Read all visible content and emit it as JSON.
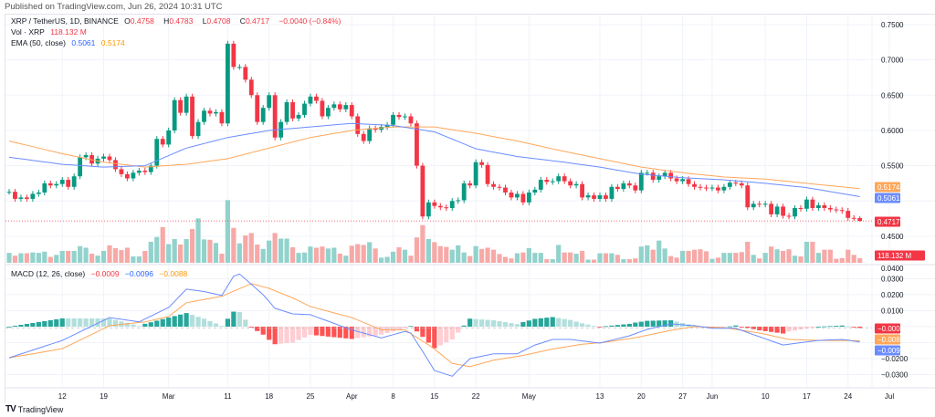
{
  "published": "Published on TradingView.com, Jun 26, 2024 10:31 UTC",
  "legend": {
    "symbol": "XRP / TetherUS, 1D, BINANCE",
    "o_label": "O",
    "o": "0.4758",
    "h_label": "H",
    "h": "0.4783",
    "l_label": "L",
    "l": "0.4708",
    "c_label": "C",
    "c": "0.4717",
    "change": "−0.0040 (−0.84%)",
    "vol_label": "Vol · XRP",
    "vol": "118.132 M",
    "ema_label": "EMA (50, close)",
    "ema1": "0.5061",
    "ema2": "0.5174",
    "macd_label": "MACD (12, 26, close)",
    "macd_hist": "−0.0009",
    "macd_line": "−0.0096",
    "macd_signal": "−0.0088"
  },
  "logo": "TradingView",
  "colors": {
    "up": "#089981",
    "down": "#f23645",
    "vol_up": "#92d2cc",
    "vol_down": "#f7a9a7",
    "ema1": "#6b8cff",
    "ema2": "#ffa75a",
    "hist_up_strong": "#26a69a",
    "hist_up_weak": "#b2dfdb",
    "hist_down_strong": "#ff5252",
    "hist_down_weak": "#ffcdd2"
  },
  "chart_data": [
    {
      "type": "candlestick",
      "title": "XRP / TetherUS, 1D, BINANCE",
      "ylim": [
        0.43,
        0.76
      ],
      "y_ticks": [
        "0.7500",
        "0.7000",
        "0.6500",
        "0.6000",
        "0.5500",
        "0.4500"
      ],
      "x_ticks": [
        [
          "02-12",
          "12"
        ],
        [
          "02-19",
          "19"
        ],
        [
          "03-01",
          "Mar"
        ],
        [
          "03-11",
          "11"
        ],
        [
          "03-18",
          "18"
        ],
        [
          "03-25",
          "25"
        ],
        [
          "04-01",
          "Apr"
        ],
        [
          "04-08",
          "8"
        ],
        [
          "04-15",
          "15"
        ],
        [
          "04-22",
          "22"
        ],
        [
          "05-01",
          "May"
        ],
        [
          "05-13",
          "13"
        ],
        [
          "05-20",
          "20"
        ],
        [
          "05-27",
          "27"
        ],
        [
          "06-01",
          "Jun"
        ],
        [
          "06-10",
          "10"
        ],
        [
          "06-17",
          "17"
        ],
        [
          "06-24",
          "24"
        ],
        [
          "07-01",
          "Jul"
        ]
      ],
      "grid": true,
      "last_candle": {
        "open": 0.4758,
        "high": 0.4783,
        "low": 0.4708,
        "close": 0.4717
      },
      "candles_date_close_volumeM": [
        [
          "02-03",
          0.513,
          250
        ],
        [
          "02-04",
          0.503,
          180
        ],
        [
          "02-05",
          0.505,
          240
        ],
        [
          "02-06",
          0.503,
          240
        ],
        [
          "02-07",
          0.51,
          260
        ],
        [
          "02-08",
          0.512,
          250
        ],
        [
          "02-09",
          0.525,
          280
        ],
        [
          "02-10",
          0.522,
          150
        ],
        [
          "02-11",
          0.524,
          200
        ],
        [
          "02-12",
          0.53,
          300
        ],
        [
          "02-13",
          0.52,
          300
        ],
        [
          "02-14",
          0.535,
          300
        ],
        [
          "02-15",
          0.562,
          420
        ],
        [
          "02-16",
          0.565,
          380
        ],
        [
          "02-17",
          0.553,
          230
        ],
        [
          "02-18",
          0.56,
          180
        ],
        [
          "02-19",
          0.563,
          300
        ],
        [
          "02-20",
          0.558,
          440
        ],
        [
          "02-21",
          0.545,
          370
        ],
        [
          "02-22",
          0.538,
          320
        ],
        [
          "02-23",
          0.532,
          380
        ],
        [
          "02-24",
          0.54,
          160
        ],
        [
          "02-25",
          0.543,
          160
        ],
        [
          "02-26",
          0.541,
          300
        ],
        [
          "02-27",
          0.55,
          530
        ],
        [
          "02-28",
          0.588,
          650
        ],
        [
          "02-29",
          0.58,
          900
        ],
        [
          "03-01",
          0.6,
          470
        ],
        [
          "03-02",
          0.643,
          600
        ],
        [
          "03-03",
          0.625,
          460
        ],
        [
          "03-04",
          0.648,
          600
        ],
        [
          "03-05",
          0.592,
          850
        ],
        [
          "03-06",
          0.612,
          1120
        ],
        [
          "03-07",
          0.628,
          590
        ],
        [
          "03-08",
          0.624,
          580
        ],
        [
          "03-09",
          0.626,
          500
        ],
        [
          "03-10",
          0.61,
          230
        ],
        [
          "03-11",
          0.723,
          1580
        ],
        [
          "03-12",
          0.69,
          880
        ],
        [
          "03-13",
          0.69,
          490
        ],
        [
          "03-14",
          0.672,
          690
        ],
        [
          "03-15",
          0.65,
          750
        ],
        [
          "03-16",
          0.612,
          460
        ],
        [
          "03-17",
          0.632,
          350
        ],
        [
          "03-18",
          0.65,
          560
        ],
        [
          "03-19",
          0.59,
          750
        ],
        [
          "03-20",
          0.612,
          610
        ],
        [
          "03-21",
          0.64,
          610
        ],
        [
          "03-22",
          0.617,
          390
        ],
        [
          "03-23",
          0.622,
          250
        ],
        [
          "03-24",
          0.638,
          260
        ],
        [
          "03-25",
          0.648,
          410
        ],
        [
          "03-26",
          0.642,
          380
        ],
        [
          "03-27",
          0.62,
          410
        ],
        [
          "03-28",
          0.632,
          360
        ],
        [
          "03-29",
          0.637,
          380
        ],
        [
          "03-30",
          0.63,
          230
        ],
        [
          "03-31",
          0.636,
          180
        ],
        [
          "04-01",
          0.62,
          430
        ],
        [
          "04-02",
          0.595,
          470
        ],
        [
          "04-03",
          0.585,
          450
        ],
        [
          "04-04",
          0.603,
          520
        ],
        [
          "04-05",
          0.601,
          360
        ],
        [
          "04-06",
          0.605,
          130
        ],
        [
          "04-07",
          0.608,
          150
        ],
        [
          "04-08",
          0.622,
          280
        ],
        [
          "04-09",
          0.619,
          390
        ],
        [
          "04-10",
          0.62,
          330
        ],
        [
          "04-11",
          0.61,
          180
        ],
        [
          "04-12",
          0.55,
          640
        ],
        [
          "04-13",
          0.478,
          950
        ],
        [
          "04-14",
          0.498,
          600
        ],
        [
          "04-15",
          0.493,
          520
        ],
        [
          "04-16",
          0.491,
          420
        ],
        [
          "04-17",
          0.49,
          400
        ],
        [
          "04-18",
          0.5,
          330
        ],
        [
          "04-19",
          0.501,
          440
        ],
        [
          "04-20",
          0.525,
          260
        ],
        [
          "04-21",
          0.522,
          170
        ],
        [
          "04-22",
          0.555,
          420
        ],
        [
          "04-23",
          0.551,
          350
        ],
        [
          "04-24",
          0.524,
          380
        ],
        [
          "04-25",
          0.52,
          330
        ],
        [
          "04-26",
          0.519,
          220
        ],
        [
          "04-27",
          0.512,
          150
        ],
        [
          "04-28",
          0.505,
          110
        ],
        [
          "04-29",
          0.51,
          240
        ],
        [
          "04-30",
          0.498,
          260
        ],
        [
          "05-01",
          0.512,
          370
        ],
        [
          "05-02",
          0.516,
          250
        ],
        [
          "05-03",
          0.53,
          250
        ],
        [
          "05-04",
          0.527,
          90
        ],
        [
          "05-05",
          0.528,
          90
        ],
        [
          "05-06",
          0.535,
          450
        ],
        [
          "05-07",
          0.528,
          260
        ],
        [
          "05-08",
          0.522,
          260
        ],
        [
          "05-09",
          0.524,
          230
        ],
        [
          "05-10",
          0.505,
          300
        ],
        [
          "05-11",
          0.508,
          80
        ],
        [
          "05-12",
          0.503,
          80
        ],
        [
          "05-13",
          0.508,
          240
        ],
        [
          "05-14",
          0.503,
          240
        ],
        [
          "05-15",
          0.52,
          240
        ],
        [
          "05-16",
          0.517,
          200
        ],
        [
          "05-17",
          0.525,
          90
        ],
        [
          "05-18",
          0.522,
          90
        ],
        [
          "05-19",
          0.515,
          110
        ],
        [
          "05-20",
          0.54,
          410
        ],
        [
          "05-21",
          0.54,
          440
        ],
        [
          "05-22",
          0.53,
          330
        ],
        [
          "05-23",
          0.535,
          560
        ],
        [
          "05-24",
          0.54,
          360
        ],
        [
          "05-25",
          0.532,
          170
        ],
        [
          "05-26",
          0.528,
          130
        ],
        [
          "05-27",
          0.531,
          300
        ],
        [
          "05-28",
          0.524,
          300
        ],
        [
          "05-29",
          0.52,
          330
        ],
        [
          "05-30",
          0.519,
          340
        ],
        [
          "05-31",
          0.518,
          290
        ],
        [
          "06-01",
          0.519,
          100
        ],
        [
          "06-02",
          0.515,
          130
        ],
        [
          "06-03",
          0.52,
          250
        ],
        [
          "06-04",
          0.526,
          250
        ],
        [
          "06-05",
          0.525,
          250
        ],
        [
          "06-06",
          0.522,
          270
        ],
        [
          "06-07",
          0.491,
          530
        ],
        [
          "06-08",
          0.496,
          200
        ],
        [
          "06-09",
          0.495,
          110
        ],
        [
          "06-10",
          0.496,
          250
        ],
        [
          "06-11",
          0.481,
          410
        ],
        [
          "06-12",
          0.492,
          340
        ],
        [
          "06-13",
          0.479,
          300
        ],
        [
          "06-14",
          0.478,
          340
        ],
        [
          "06-15",
          0.49,
          180
        ],
        [
          "06-16",
          0.489,
          160
        ],
        [
          "06-17",
          0.502,
          530
        ],
        [
          "06-18",
          0.49,
          530
        ],
        [
          "06-19",
          0.494,
          250
        ],
        [
          "06-20",
          0.49,
          330
        ],
        [
          "06-21",
          0.488,
          330
        ],
        [
          "06-22",
          0.487,
          100
        ],
        [
          "06-23",
          0.486,
          120
        ],
        [
          "06-24",
          0.476,
          330
        ],
        [
          "06-25",
          0.4758,
          200
        ],
        [
          "06-26",
          0.4717,
          118.132
        ]
      ],
      "ema_blue": [
        [
          "02-03",
          0.562
        ],
        [
          "02-12",
          0.552
        ],
        [
          "02-19",
          0.548
        ],
        [
          "02-26",
          0.55
        ],
        [
          "03-04",
          0.575
        ],
        [
          "03-11",
          0.59
        ],
        [
          "03-18",
          0.6
        ],
        [
          "03-25",
          0.605
        ],
        [
          "04-01",
          0.61
        ],
        [
          "04-08",
          0.607
        ],
        [
          "04-15",
          0.598
        ],
        [
          "04-22",
          0.574
        ],
        [
          "04-29",
          0.563
        ],
        [
          "05-06",
          0.556
        ],
        [
          "05-13",
          0.548
        ],
        [
          "05-20",
          0.538
        ],
        [
          "05-27",
          0.533
        ],
        [
          "06-03",
          0.53
        ],
        [
          "06-10",
          0.525
        ],
        [
          "06-17",
          0.519
        ],
        [
          "06-26",
          0.5061
        ]
      ],
      "ema_orange": [
        [
          "02-03",
          0.585
        ],
        [
          "02-12",
          0.567
        ],
        [
          "02-19",
          0.555
        ],
        [
          "02-26",
          0.548
        ],
        [
          "03-04",
          0.552
        ],
        [
          "03-11",
          0.56
        ],
        [
          "03-18",
          0.575
        ],
        [
          "03-25",
          0.59
        ],
        [
          "04-01",
          0.6
        ],
        [
          "04-08",
          0.605
        ],
        [
          "04-15",
          0.605
        ],
        [
          "04-22",
          0.596
        ],
        [
          "04-29",
          0.585
        ],
        [
          "05-06",
          0.572
        ],
        [
          "05-13",
          0.56
        ],
        [
          "05-20",
          0.548
        ],
        [
          "05-27",
          0.54
        ],
        [
          "06-03",
          0.534
        ],
        [
          "06-10",
          0.531
        ],
        [
          "06-17",
          0.525
        ],
        [
          "06-26",
          0.5174
        ]
      ],
      "price_tags": [
        [
          "0.5174",
          "ema2"
        ],
        [
          "0.5061",
          "ema1"
        ],
        [
          "0.4717",
          "down"
        ]
      ],
      "volume_tag": "118.132 M"
    },
    {
      "type": "line",
      "title": "MACD (12, 26, close)",
      "ylim": [
        -0.042,
        0.04
      ],
      "y_ticks": [
        "0.0400",
        "0.0300",
        "0.0200",
        "0.0100",
        "−0.0200",
        "−0.0300"
      ],
      "macd": [
        [
          "02-03",
          -0.0195
        ],
        [
          "02-12",
          -0.0086
        ],
        [
          "02-20",
          0.0057
        ],
        [
          "02-25",
          0.003
        ],
        [
          "03-01",
          0.012
        ],
        [
          "03-04",
          0.0235
        ],
        [
          "03-07",
          0.022
        ],
        [
          "03-10",
          0.0195
        ],
        [
          "03-12",
          0.0316
        ],
        [
          "03-13",
          0.033
        ],
        [
          "03-17",
          0.02
        ],
        [
          "03-19",
          0.0115
        ],
        [
          "03-22",
          0.008
        ],
        [
          "03-25",
          0.0075
        ],
        [
          "04-01",
          -0.002
        ],
        [
          "04-06",
          -0.007
        ],
        [
          "04-10",
          -0.003
        ],
        [
          "04-11",
          -0.004
        ],
        [
          "04-13",
          -0.0155
        ],
        [
          "04-15",
          -0.0275
        ],
        [
          "04-18",
          -0.031
        ],
        [
          "04-21",
          -0.02
        ],
        [
          "04-25",
          -0.017
        ],
        [
          "04-29",
          -0.017
        ],
        [
          "05-02",
          -0.0115
        ],
        [
          "05-05",
          -0.008
        ],
        [
          "05-08",
          -0.008
        ],
        [
          "05-13",
          -0.0103
        ],
        [
          "05-18",
          -0.0057
        ],
        [
          "05-21",
          -0.0017
        ],
        [
          "05-25",
          0.0017
        ],
        [
          "05-29",
          0.0006
        ],
        [
          "06-01",
          -0.001
        ],
        [
          "06-05",
          -0.001
        ],
        [
          "06-08",
          -0.005
        ],
        [
          "06-13",
          -0.0115
        ],
        [
          "06-16",
          -0.01
        ],
        [
          "06-19",
          -0.0086
        ],
        [
          "06-23",
          -0.008
        ],
        [
          "06-26",
          -0.0096
        ]
      ],
      "signal": [
        [
          "02-03",
          -0.0195
        ],
        [
          "02-12",
          -0.0138
        ],
        [
          "02-20",
          0.0006
        ],
        [
          "02-26",
          0.003
        ],
        [
          "03-01",
          0.0063
        ],
        [
          "03-04",
          0.015
        ],
        [
          "03-10",
          0.019
        ],
        [
          "03-15",
          0.027
        ],
        [
          "03-18",
          0.024
        ],
        [
          "03-22",
          0.018
        ],
        [
          "03-25",
          0.0126
        ],
        [
          "04-01",
          0.0057
        ],
        [
          "04-06",
          -0.002
        ],
        [
          "04-10",
          -0.002
        ],
        [
          "04-14",
          -0.0115
        ],
        [
          "04-15",
          -0.014
        ],
        [
          "04-18",
          -0.023
        ],
        [
          "04-21",
          -0.025
        ],
        [
          "04-25",
          -0.021
        ],
        [
          "04-30",
          -0.018
        ],
        [
          "05-05",
          -0.014
        ],
        [
          "05-10",
          -0.011
        ],
        [
          "05-14",
          -0.0097
        ],
        [
          "05-19",
          -0.0069
        ],
        [
          "05-25",
          -0.0023
        ],
        [
          "05-29",
          0.0
        ],
        [
          "06-03",
          -0.0006
        ],
        [
          "06-09",
          -0.004
        ],
        [
          "06-14",
          -0.008
        ],
        [
          "06-19",
          -0.0086
        ],
        [
          "06-26",
          -0.0088
        ]
      ],
      "tags": [
        [
          "−0.0009",
          "down"
        ],
        [
          "−0.0088",
          "ema2"
        ],
        [
          "−0.0096",
          "ema1"
        ]
      ]
    }
  ]
}
